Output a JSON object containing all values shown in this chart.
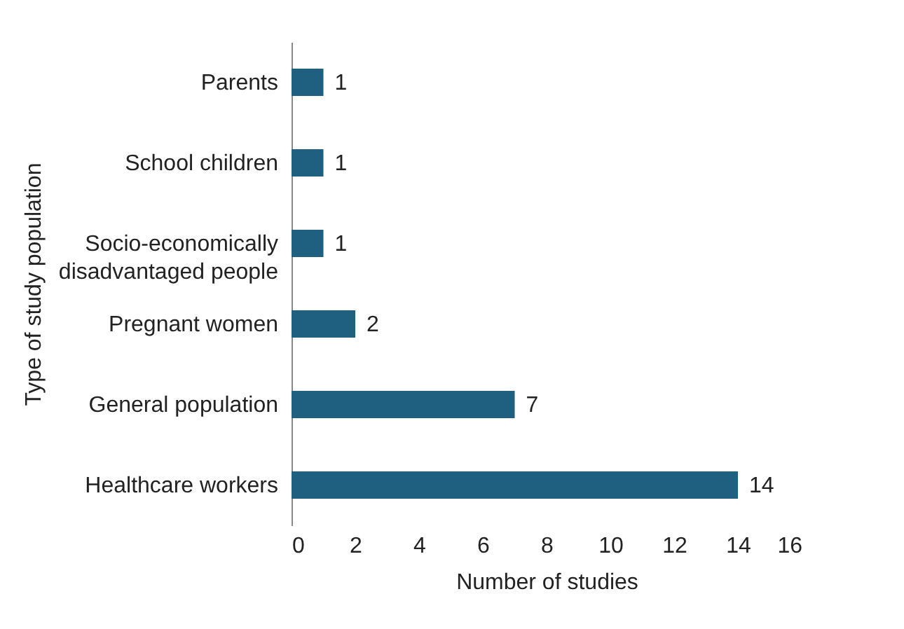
{
  "chart_data": {
    "type": "bar",
    "orientation": "horizontal",
    "xlabel": "Number of studies",
    "ylabel": "Type of study population",
    "categories": [
      "Parents",
      "School children",
      "Socio-economically disadvantaged people",
      "Pregnant women",
      "General population",
      "Healthcare workers"
    ],
    "values": [
      1,
      1,
      1,
      2,
      7,
      14
    ],
    "color": "#1f5f80",
    "xlim": [
      0,
      16
    ],
    "xticks": [
      0,
      2,
      4,
      6,
      8,
      10,
      12,
      14,
      16
    ],
    "grid": false,
    "data_labels": true
  }
}
